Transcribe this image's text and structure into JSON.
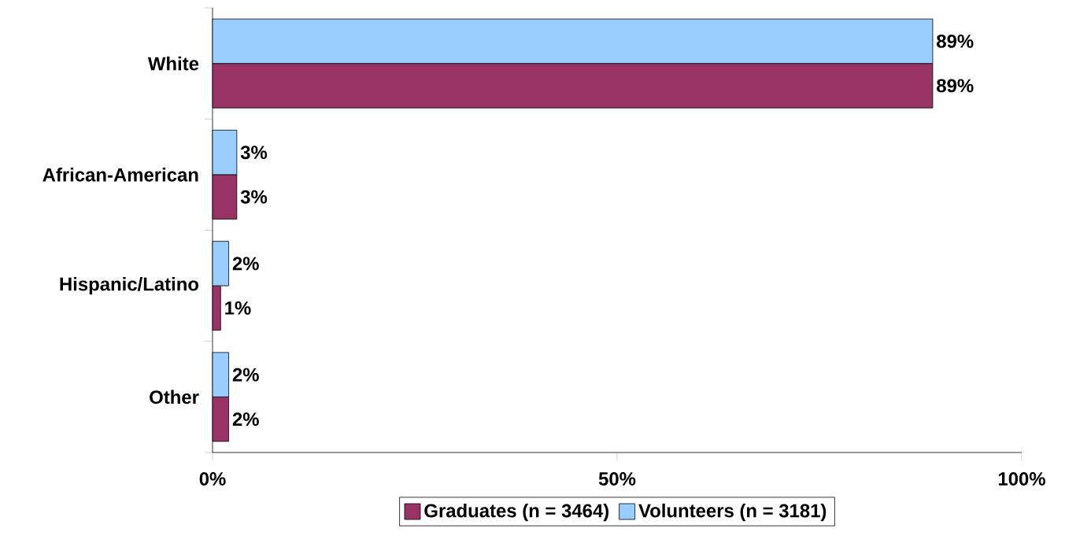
{
  "chart_data": {
    "type": "bar",
    "orientation": "horizontal",
    "categories": [
      "White",
      "African-American",
      "Hispanic/Latino",
      "Other"
    ],
    "series": [
      {
        "name": "Graduates (n = 3464)",
        "color": "#993366",
        "values": [
          89,
          3,
          1,
          2
        ],
        "value_labels": [
          "89%",
          "3%",
          "1%",
          "2%"
        ]
      },
      {
        "name": "Volunteers (n = 3181)",
        "color": "#99ccff",
        "values": [
          89,
          3,
          2,
          2
        ],
        "value_labels": [
          "89%",
          "3%",
          "2%",
          "2%"
        ]
      }
    ],
    "xlim": [
      0,
      100
    ],
    "xticks": [
      {
        "value": 0,
        "label": "0%"
      },
      {
        "value": 50,
        "label": "50%"
      },
      {
        "value": 100,
        "label": "100%"
      }
    ],
    "grid": false,
    "legend": "bottom"
  }
}
